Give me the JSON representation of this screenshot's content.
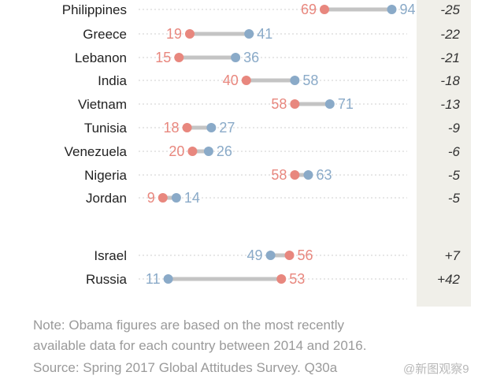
{
  "chart_data": {
    "type": "dumbbell",
    "series": [
      {
        "name": "",
        "color": "#e8877e"
      },
      {
        "name": "",
        "color": "#8aaac8"
      }
    ],
    "rows": [
      {
        "country": "Philippines",
        "a": 69,
        "b": 94,
        "diff": "-25"
      },
      {
        "country": "Greece",
        "a": 19,
        "b": 41,
        "diff": "-22"
      },
      {
        "country": "Lebanon",
        "a": 15,
        "b": 36,
        "diff": "-21"
      },
      {
        "country": "India",
        "a": 40,
        "b": 58,
        "diff": "-18"
      },
      {
        "country": "Vietnam",
        "a": 58,
        "b": 71,
        "diff": "-13"
      },
      {
        "country": "Tunisia",
        "a": 18,
        "b": 27,
        "diff": "-9"
      },
      {
        "country": "Venezuela",
        "a": 20,
        "b": 26,
        "diff": "-6"
      },
      {
        "country": "Nigeria",
        "a": 58,
        "b": 63,
        "diff": "-5"
      },
      {
        "country": "Jordan",
        "a": 9,
        "b": 14,
        "diff": "-5"
      },
      {
        "country": "Israel",
        "a": 56,
        "b": 49,
        "diff": "+7"
      },
      {
        "country": "Russia",
        "a": 53,
        "b": 11,
        "diff": "+42"
      }
    ],
    "xlim": [
      0,
      100
    ]
  },
  "notes": {
    "line1": "Note: Obama figures are based on the most recently",
    "line2": "available data for each country between 2014 and 2016.",
    "line3": "Source: Spring 2017 Global Attitudes Survey. Q30a"
  },
  "watermark": "@新图观察9"
}
